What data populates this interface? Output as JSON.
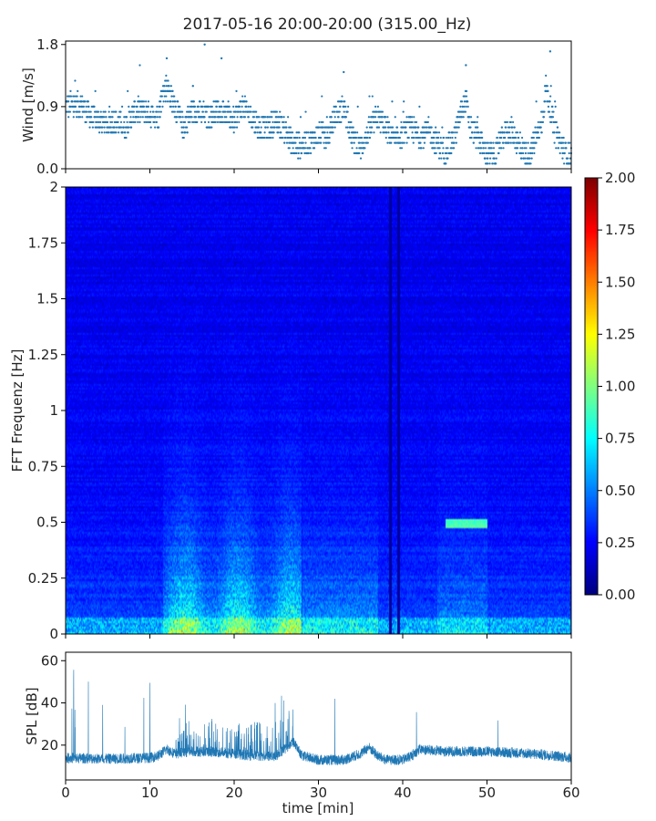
{
  "figure": {
    "title": "2017-05-16 20:00-20:00 (315.00_Hz)"
  },
  "chart_data": [
    {
      "type": "scatter",
      "ylabel": "Wind [m/s]",
      "xlim": [
        0,
        60
      ],
      "ylim": [
        0,
        1.85
      ],
      "yticks": [
        0.0,
        0.9,
        1.8
      ],
      "ytick_labels": [
        "0.0",
        "0.9",
        "1.8"
      ],
      "color": "#1f77b4",
      "trend": {
        "x": [
          0,
          1,
          2,
          3,
          5,
          6,
          7,
          8,
          9,
          10,
          11,
          11.5,
          12,
          13,
          14,
          15,
          16,
          17,
          18,
          19,
          20,
          21,
          22,
          23,
          24,
          25,
          26,
          27,
          28,
          29,
          30,
          31,
          32,
          33,
          34,
          35,
          36,
          37,
          38,
          39,
          40,
          41,
          42,
          43,
          44,
          45,
          46,
          47,
          47.5,
          48,
          49,
          50,
          51,
          52,
          53,
          54,
          55,
          56,
          56.5,
          57,
          58,
          59,
          60
        ],
        "y": [
          0.9,
          0.95,
          0.9,
          0.75,
          0.65,
          0.7,
          0.6,
          0.8,
          0.85,
          0.8,
          0.75,
          1.1,
          1.2,
          0.9,
          0.6,
          0.85,
          0.8,
          0.75,
          0.85,
          0.8,
          0.7,
          0.9,
          0.75,
          0.6,
          0.6,
          0.7,
          0.55,
          0.35,
          0.35,
          0.4,
          0.5,
          0.45,
          0.75,
          0.9,
          0.45,
          0.3,
          0.55,
          0.75,
          0.6,
          0.4,
          0.5,
          0.6,
          0.45,
          0.55,
          0.4,
          0.25,
          0.4,
          0.85,
          1.0,
          0.6,
          0.45,
          0.2,
          0.2,
          0.5,
          0.55,
          0.3,
          0.2,
          0.5,
          0.65,
          1.2,
          0.55,
          0.3,
          0.15
        ]
      }
    },
    {
      "type": "heatmap",
      "ylabel": "FFT Frequenz [Hz]",
      "xlim": [
        0,
        60
      ],
      "ylim": [
        0,
        2
      ],
      "yticks": [
        0,
        0.25,
        0.5,
        0.75,
        1,
        1.25,
        1.5,
        1.75,
        2
      ],
      "ytick_labels": [
        "0",
        "0.25",
        "0.5",
        "0.75",
        "1",
        "1.25",
        "1.5",
        "1.75",
        "2"
      ],
      "colormap": "jet",
      "colorbar": {
        "range": [
          0,
          2
        ],
        "ticks": [
          0,
          0.25,
          0.5,
          0.75,
          1.0,
          1.25,
          1.5,
          1.75,
          2.0
        ],
        "tick_labels": [
          "0.00",
          "0.25",
          "0.50",
          "0.75",
          "1.00",
          "1.25",
          "1.50",
          "1.75",
          "2.00"
        ],
        "placement": "right"
      },
      "features": {
        "quiet_gaps_min": [
          38.5,
          39.5,
          40.0
        ]
      }
    },
    {
      "type": "line",
      "ylabel": "SPL [dB]",
      "xlabel": "time [min]",
      "xlim": [
        0,
        60
      ],
      "ylim": [
        3.5,
        64
      ],
      "xticks": [
        0,
        10,
        20,
        30,
        40,
        50,
        60
      ],
      "xtick_labels": [
        "0",
        "10",
        "20",
        "30",
        "40",
        "50",
        "60"
      ],
      "yticks": [
        20,
        40,
        60
      ],
      "ytick_labels": [
        "20",
        "40",
        "60"
      ],
      "color": "#1f77b4",
      "baseline": {
        "x": [
          0,
          5,
          10,
          11,
          12,
          13,
          15,
          17,
          20,
          22,
          25,
          26,
          27,
          28,
          30,
          33,
          35,
          36,
          37,
          38,
          40,
          41,
          42,
          45,
          50,
          55,
          58,
          60
        ],
        "y": [
          14,
          13.5,
          14,
          15,
          18,
          16,
          17,
          17,
          16,
          15,
          15,
          18,
          22,
          15,
          13,
          13,
          16,
          19,
          15,
          13,
          13,
          15,
          18,
          17,
          17,
          16,
          15,
          14
        ]
      }
    }
  ]
}
